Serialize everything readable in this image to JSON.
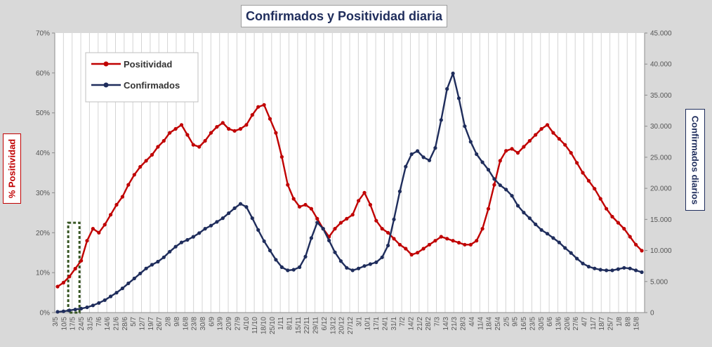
{
  "chart_data": {
    "type": "line",
    "title": "Confirmados  y Positividad  diaria",
    "ylabel_left": "% Positividad",
    "ylabel_right": "Confirmados diarios",
    "ylim_left": [
      0,
      70
    ],
    "ylim_right": [
      0,
      45000
    ],
    "y_ticks_left": [
      "0%",
      "10%",
      "20%",
      "30%",
      "40%",
      "50%",
      "60%",
      "70%"
    ],
    "y_ticks_right": [
      "0",
      "5.000",
      "10.000",
      "15.000",
      "20.000",
      "25.000",
      "30.000",
      "35.000",
      "40.000",
      "45.000"
    ],
    "x_tick_labels": [
      "3/5",
      "10/5",
      "17/5",
      "24/5",
      "31/5",
      "7/6",
      "14/6",
      "21/6",
      "28/6",
      "5/7",
      "12/7",
      "19/7",
      "26/7",
      "2/8",
      "9/8",
      "16/8",
      "23/8",
      "30/8",
      "6/9",
      "13/9",
      "20/9",
      "27/9",
      "4/10",
      "11/10",
      "18/10",
      "25/10",
      "1/11",
      "8/11",
      "15/11",
      "22/11",
      "29/11",
      "6/12",
      "13/12",
      "20/12",
      "27/12",
      "3/1",
      "10/1",
      "17/1",
      "24/1",
      "31/1",
      "7/2",
      "14/2",
      "21/2",
      "28/2",
      "7/3",
      "14/3",
      "21/3",
      "28/3",
      "4/4",
      "11/4",
      "18/4",
      "25/4",
      "2/5",
      "9/5",
      "16/5",
      "23/5",
      "30/5",
      "6/6",
      "13/6",
      "20/6",
      "27/6",
      "4/7",
      "11/7",
      "18/7",
      "25/7",
      "1/8",
      "8/8",
      "15/8"
    ],
    "grid": "vertical",
    "legend_position": "top-left",
    "highlight_box": {
      "from": "13/5",
      "to": "18/5",
      "color": "#375623"
    },
    "colors": {
      "positividad": "#c00000",
      "confirmados": "#1f2d5c",
      "plot_bg": "#ffffff",
      "page_bg": "#d9d9d9"
    },
    "series": [
      {
        "name": "Positividad",
        "axis": "left",
        "color": "#c00000",
        "values": [
          6.5,
          7.5,
          9.0,
          11.0,
          13.0,
          18.0,
          21.0,
          20.0,
          22.0,
          24.5,
          27.0,
          29.0,
          32.0,
          34.5,
          36.5,
          38.0,
          39.5,
          41.5,
          43.0,
          45.0,
          46.0,
          47.0,
          44.5,
          42.0,
          41.5,
          43.0,
          45.0,
          46.5,
          47.5,
          46.0,
          45.5,
          46.0,
          47.0,
          49.5,
          51.5,
          52.0,
          48.5,
          45.0,
          39.0,
          32.0,
          28.5,
          26.5,
          27.0,
          26.0,
          23.5,
          21.0,
          19.0,
          21.0,
          22.5,
          23.5,
          24.5,
          28.0,
          30.0,
          27.0,
          23.0,
          21.0,
          20.0,
          18.5,
          17.0,
          16.0,
          14.5,
          15.0,
          16.0,
          17.0,
          18.0,
          19.0,
          18.5,
          18.0,
          17.5,
          17.0,
          17.0,
          18.0,
          21.0,
          26.0,
          32.0,
          38.0,
          40.5,
          41.0,
          40.0,
          41.5,
          43.0,
          44.5,
          46.0,
          47.0,
          45.0,
          43.5,
          42.0,
          40.0,
          37.5,
          35.0,
          33.0,
          31.0,
          28.5,
          26.0,
          24.0,
          22.5,
          21.0,
          19.0,
          17.0,
          15.5
        ]
      },
      {
        "name": "Confirmados",
        "axis": "right",
        "color": "#1f2d5c",
        "values": [
          120,
          200,
          350,
          500,
          650,
          850,
          1150,
          1550,
          2000,
          2600,
          3200,
          3900,
          4700,
          5500,
          6300,
          7100,
          7700,
          8200,
          8900,
          9800,
          10600,
          11300,
          11700,
          12200,
          12800,
          13500,
          14000,
          14600,
          15200,
          16000,
          16800,
          17500,
          17000,
          15200,
          13300,
          11500,
          10000,
          8500,
          7300,
          6800,
          6900,
          7300,
          9000,
          12000,
          14500,
          13500,
          11600,
          9700,
          8300,
          7200,
          6800,
          7100,
          7500,
          7800,
          8100,
          8900,
          10800,
          15000,
          19500,
          23500,
          25500,
          26000,
          25000,
          24500,
          26500,
          31000,
          36000,
          38500,
          34500,
          30000,
          27500,
          25500,
          24200,
          23000,
          21500,
          20500,
          19800,
          18800,
          17200,
          16100,
          15200,
          14200,
          13300,
          12700,
          12000,
          11300,
          10400,
          9600,
          8700,
          7900,
          7400,
          7100,
          6900,
          6800,
          6800,
          7000,
          7200,
          7100,
          6800,
          6500
        ]
      }
    ]
  }
}
